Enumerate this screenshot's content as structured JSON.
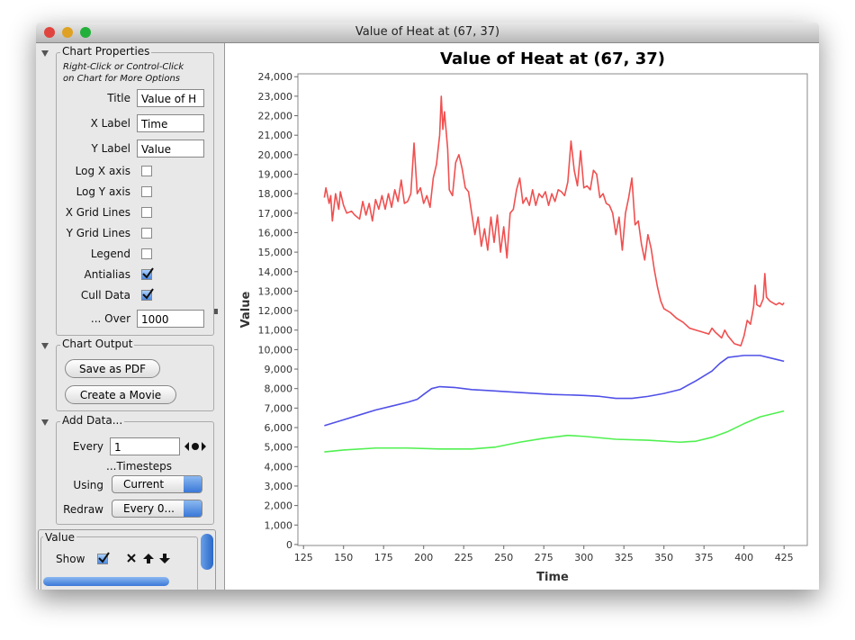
{
  "window": {
    "title": "Value of Heat at (67, 37)"
  },
  "sidebar": {
    "chart_properties": {
      "heading": "Chart Properties",
      "hint": [
        "Right-Click or Control-Click",
        "on Chart for More Options"
      ],
      "fields": [
        {
          "label": "Title",
          "value": "Value of H"
        },
        {
          "label": "X Label",
          "value": "Time"
        },
        {
          "label": "Y Label",
          "value": "Value"
        }
      ],
      "options": [
        {
          "label": "Log X axis",
          "checked": false
        },
        {
          "label": "Log Y axis",
          "checked": false
        },
        {
          "label": "X Grid Lines",
          "checked": false
        },
        {
          "label": "Y Grid Lines",
          "checked": false
        },
        {
          "label": "Legend",
          "checked": false
        },
        {
          "label": "Antialias",
          "checked": true
        },
        {
          "label": "Cull Data",
          "checked": true
        }
      ],
      "over": {
        "label": "... Over",
        "value": 1000
      }
    },
    "chart_output": {
      "heading": "Chart Output",
      "buttons": [
        "Save as PDF",
        "Create a Movie"
      ]
    },
    "add_data": {
      "heading": "Add Data...",
      "every": {
        "label": "Every",
        "value": 1
      },
      "timesteps": "...Timesteps",
      "using": {
        "label": "Using",
        "value": "Current"
      },
      "redraw": {
        "label": "Redraw",
        "value": "Every 0..."
      }
    },
    "value_panel": {
      "heading": "Value",
      "show": {
        "label": "Show",
        "checked": true
      }
    }
  },
  "chart_data": {
    "type": "line",
    "title": "Value of Heat at (67, 37)",
    "x_label": "Time",
    "y_label": "Value",
    "xlim": [
      121.5,
      439.5
    ],
    "ylim": [
      -50,
      24150
    ],
    "xticks": [
      125,
      150,
      175,
      200,
      225,
      250,
      275,
      300,
      325,
      350,
      375,
      400,
      425
    ],
    "yticks": [
      0,
      {
        "value": 1000,
        "label": "1,000"
      },
      {
        "value": 2000,
        "label": "2,000"
      },
      {
        "value": 3000,
        "label": "3,000"
      },
      {
        "value": 4000,
        "label": "4,000"
      },
      {
        "value": 5000,
        "label": "5,000"
      },
      {
        "value": 6000,
        "label": "6,000"
      },
      {
        "value": 7000,
        "label": "7,000"
      },
      {
        "value": 8000,
        "label": "8,000"
      },
      {
        "value": 9000,
        "label": "9,000"
      },
      {
        "value": 10000,
        "label": "10,000"
      },
      {
        "value": 11000,
        "label": "11,000"
      },
      {
        "value": 12000,
        "label": "12,000"
      },
      {
        "value": 13000,
        "label": "13,000"
      },
      {
        "value": 14000,
        "label": "14,000"
      },
      {
        "value": 15000,
        "label": "15,000"
      },
      {
        "value": 16000,
        "label": "16,000"
      },
      {
        "value": 17000,
        "label": "17,000"
      },
      {
        "value": 18000,
        "label": "18,000"
      },
      {
        "value": 19000,
        "label": "19,000"
      },
      {
        "value": 20000,
        "label": "20,000"
      },
      {
        "value": 21000,
        "label": "21,000"
      },
      {
        "value": 22000,
        "label": "22,000"
      },
      {
        "value": 23000,
        "label": "23,000"
      },
      {
        "value": 24000,
        "label": "24,000"
      }
    ],
    "grid": false,
    "series": [
      {
        "color": "#f05050",
        "x": [
          138,
          139,
          141,
          142,
          143,
          145,
          147,
          148,
          150,
          152,
          155,
          157,
          160,
          162,
          164,
          166,
          168,
          170,
          172,
          174,
          176,
          178,
          180,
          182,
          184,
          186,
          188,
          190,
          192,
          194,
          196,
          198,
          200,
          202,
          204,
          206,
          208,
          210,
          211,
          212,
          213,
          215,
          216,
          218,
          220,
          222,
          224,
          226,
          228,
          230,
          232,
          234,
          236,
          238,
          240,
          242,
          244,
          246,
          248,
          250,
          252,
          254,
          256,
          258,
          260,
          262,
          264,
          266,
          268,
          270,
          272,
          274,
          276,
          278,
          280,
          282,
          284,
          286,
          288,
          290,
          292,
          294,
          296,
          298,
          300,
          302,
          304,
          306,
          308,
          310,
          312,
          314,
          316,
          318,
          320,
          322,
          324,
          326,
          328,
          330,
          332,
          334,
          336,
          338,
          340,
          342,
          344,
          346,
          348,
          350,
          354,
          358,
          362,
          366,
          370,
          374,
          378,
          380,
          382,
          386,
          388,
          390,
          394,
          398,
          400,
          402,
          404,
          406,
          407,
          408,
          410,
          412,
          413,
          414,
          416,
          418,
          420,
          422,
          424,
          425
        ],
        "values": [
          17800,
          18300,
          17500,
          17900,
          16600,
          18000,
          17200,
          18100,
          17400,
          17000,
          17100,
          16900,
          16700,
          17600,
          16900,
          17500,
          16600,
          17700,
          17200,
          17900,
          17200,
          18000,
          17300,
          18200,
          17600,
          18700,
          17500,
          17600,
          18000,
          20600,
          18000,
          18300,
          17500,
          17900,
          17300,
          18800,
          19500,
          21000,
          23000,
          21300,
          22200,
          20300,
          18200,
          17900,
          19600,
          20000,
          19300,
          18300,
          18100,
          17000,
          15900,
          16800,
          15300,
          16200,
          15100,
          16800,
          15500,
          16900,
          15000,
          16300,
          14700,
          17000,
          17200,
          18200,
          18800,
          17500,
          17800,
          17400,
          18200,
          17400,
          18000,
          17800,
          18100,
          17400,
          18000,
          17600,
          18200,
          18100,
          17900,
          18600,
          20700,
          19200,
          18400,
          20200,
          18300,
          18400,
          18200,
          19200,
          19000,
          17800,
          18000,
          17500,
          17400,
          17000,
          15900,
          16800,
          15100,
          17000,
          17800,
          18800,
          16400,
          16600,
          15400,
          14600,
          15900,
          15200,
          14100,
          13200,
          12500,
          12100,
          11900,
          11600,
          11400,
          11100,
          11000,
          10900,
          10800,
          11100,
          10900,
          10600,
          11000,
          10700,
          10300,
          10200,
          10700,
          11500,
          11300,
          12200,
          13300,
          12300,
          12200,
          12600,
          13900,
          12700,
          12500,
          12400,
          12300,
          12400,
          12300,
          12400
        ]
      },
      {
        "color": "#5050e8",
        "x": [
          138,
          150,
          160,
          170,
          180,
          190,
          196,
          200,
          205,
          210,
          220,
          230,
          240,
          250,
          260,
          280,
          300,
          310,
          320,
          330,
          340,
          350,
          360,
          370,
          380,
          385,
          390,
          400,
          410,
          420,
          425
        ],
        "values": [
          6100,
          6400,
          6650,
          6900,
          7100,
          7300,
          7450,
          7700,
          8000,
          8100,
          8050,
          7950,
          7900,
          7850,
          7800,
          7700,
          7650,
          7600,
          7500,
          7500,
          7600,
          7750,
          7950,
          8400,
          8900,
          9300,
          9600,
          9700,
          9700,
          9500,
          9400
        ]
      },
      {
        "color": "#50f050",
        "x": [
          138,
          150,
          170,
          190,
          210,
          230,
          245,
          260,
          275,
          290,
          300,
          320,
          340,
          360,
          370,
          380,
          390,
          400,
          410,
          420,
          425
        ],
        "values": [
          4750,
          4850,
          4950,
          4950,
          4900,
          4900,
          5000,
          5250,
          5450,
          5600,
          5550,
          5400,
          5350,
          5250,
          5300,
          5500,
          5800,
          6200,
          6550,
          6750,
          6850
        ]
      }
    ]
  }
}
